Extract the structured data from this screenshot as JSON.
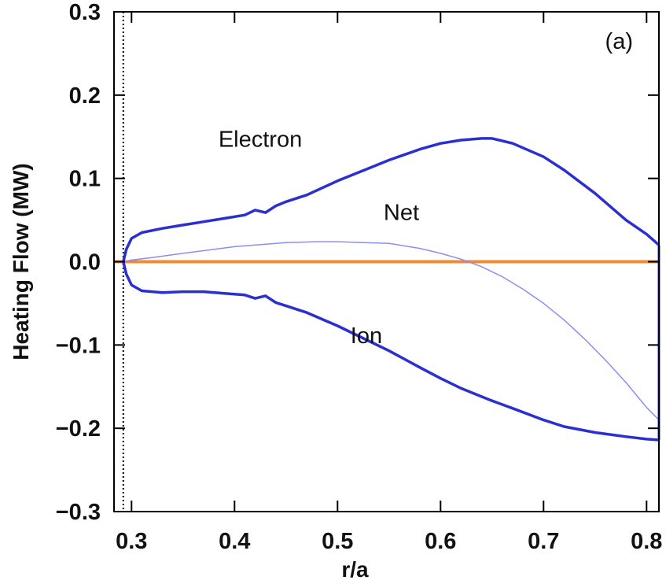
{
  "chart_data": {
    "type": "line",
    "title": "",
    "panel_label": "(a)",
    "xlabel": "r/a",
    "ylabel": "Heating Flow (MW)",
    "xlim": [
      0.283,
      0.812
    ],
    "ylim": [
      -0.3,
      0.3
    ],
    "xticks": [
      {
        "v": 0.3,
        "label": "0.3"
      },
      {
        "v": 0.4,
        "label": "0.4"
      },
      {
        "v": 0.5,
        "label": "0.5"
      },
      {
        "v": 0.6,
        "label": "0.6"
      },
      {
        "v": 0.7,
        "label": "0.7"
      },
      {
        "v": 0.8,
        "label": "0.8"
      }
    ],
    "yticks": [
      {
        "v": 0.3,
        "label": "0.3"
      },
      {
        "v": 0.2,
        "label": "0.2"
      },
      {
        "v": 0.1,
        "label": "0.1"
      },
      {
        "v": 0.0,
        "label": "0.0"
      },
      {
        "v": -0.1,
        "label": "−0.1"
      },
      {
        "v": -0.2,
        "label": "−0.2"
      },
      {
        "v": -0.3,
        "label": "−0.3"
      }
    ],
    "grid": false,
    "series": [
      {
        "name": "Electron",
        "color": "#2b2fcf",
        "x": [
          0.292,
          0.295,
          0.3,
          0.31,
          0.33,
          0.35,
          0.37,
          0.39,
          0.41,
          0.42,
          0.43,
          0.44,
          0.45,
          0.47,
          0.5,
          0.53,
          0.55,
          0.58,
          0.6,
          0.62,
          0.64,
          0.65,
          0.67,
          0.7,
          0.72,
          0.75,
          0.78,
          0.8,
          0.812
        ],
        "y": [
          0.0,
          0.015,
          0.028,
          0.035,
          0.04,
          0.044,
          0.048,
          0.052,
          0.056,
          0.062,
          0.059,
          0.067,
          0.072,
          0.08,
          0.097,
          0.112,
          0.122,
          0.135,
          0.142,
          0.146,
          0.148,
          0.148,
          0.142,
          0.126,
          0.11,
          0.082,
          0.05,
          0.033,
          0.02
        ]
      },
      {
        "name": "Ion",
        "color": "#2b2fcf",
        "x": [
          0.292,
          0.295,
          0.3,
          0.31,
          0.33,
          0.35,
          0.37,
          0.39,
          0.41,
          0.42,
          0.43,
          0.44,
          0.45,
          0.47,
          0.5,
          0.53,
          0.55,
          0.58,
          0.6,
          0.62,
          0.64,
          0.65,
          0.67,
          0.7,
          0.72,
          0.75,
          0.78,
          0.8,
          0.812
        ],
        "y": [
          0.0,
          -0.015,
          -0.028,
          -0.035,
          -0.037,
          -0.036,
          -0.036,
          -0.038,
          -0.04,
          -0.044,
          -0.041,
          -0.049,
          -0.053,
          -0.061,
          -0.077,
          -0.095,
          -0.107,
          -0.127,
          -0.14,
          -0.152,
          -0.162,
          -0.167,
          -0.176,
          -0.19,
          -0.198,
          -0.205,
          -0.21,
          -0.213,
          -0.214
        ]
      },
      {
        "name": "Net",
        "color": "#8a8ef0",
        "x": [
          0.292,
          0.3,
          0.32,
          0.35,
          0.4,
          0.45,
          0.48,
          0.5,
          0.55,
          0.58,
          0.6,
          0.62,
          0.64,
          0.66,
          0.68,
          0.7,
          0.72,
          0.74,
          0.76,
          0.78,
          0.8,
          0.812
        ],
        "y": [
          0.0,
          0.002,
          0.005,
          0.01,
          0.018,
          0.023,
          0.024,
          0.024,
          0.022,
          0.016,
          0.01,
          0.003,
          -0.006,
          -0.018,
          -0.033,
          -0.05,
          -0.07,
          -0.093,
          -0.118,
          -0.145,
          -0.175,
          -0.19
        ]
      }
    ],
    "zero_line": {
      "y": 0.0,
      "color": "#f08a2c"
    },
    "vertical_dotted_lines": [
      0.292,
      0.812
    ],
    "annotations": [
      {
        "text": "Electron",
        "x": 0.425,
        "y": 0.138
      },
      {
        "text": "Net",
        "x": 0.562,
        "y": 0.05
      },
      {
        "text": "Ion",
        "x": 0.528,
        "y": -0.098
      }
    ]
  }
}
